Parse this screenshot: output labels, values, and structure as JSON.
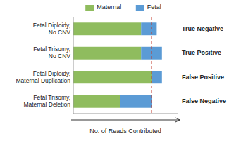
{
  "chart_data": {
    "type": "bar",
    "orientation": "horizontal",
    "stacked": true,
    "categories": [
      "Fetal Trisomy,\nMaternal Deletion",
      "Fetal Diploidy,\nMaternal Duplication",
      "Fetal Trisomy,\nNo CNV",
      "Fetal Diploidy,\nNo CNV"
    ],
    "series": [
      {
        "name": "Maternal",
        "color": "#8fbc5e",
        "values": [
          45,
          75,
          65,
          65
        ]
      },
      {
        "name": "Fetal",
        "color": "#5b9bd5",
        "values": [
          30,
          10,
          20,
          15
        ]
      }
    ],
    "annotations": [
      "False Negative",
      "False Positive",
      "True Positive",
      "True Negative"
    ],
    "reference_line": {
      "value": 75,
      "color": "#c0392b",
      "line_style": "dashed"
    },
    "xlabel": "No. of Reads Contributed",
    "xlim": [
      0,
      100
    ],
    "xticks": [],
    "tick_labels": "y",
    "grid": false,
    "legend": "top"
  }
}
